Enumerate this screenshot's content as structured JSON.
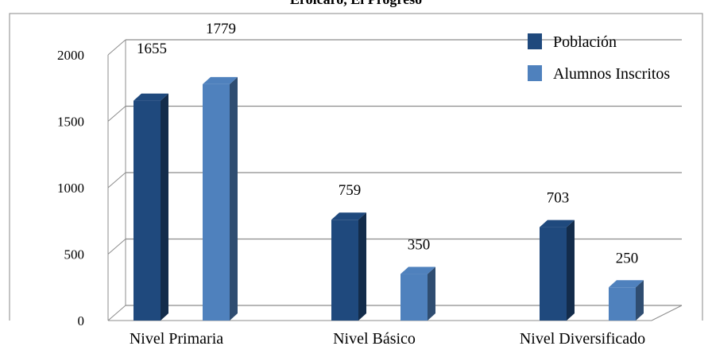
{
  "chart_data": {
    "type": "bar",
    "title": "Eroicaro, El Progreso",
    "categories": [
      "Nivel Primaria",
      "Nivel Básico",
      "Nivel Diversificado"
    ],
    "series": [
      {
        "name": "Población",
        "values": [
          1655,
          759,
          703
        ],
        "color": "#1F497D"
      },
      {
        "name": "Alumnos Inscritos",
        "values": [
          1779,
          350,
          250
        ],
        "color": "#4F81BD"
      }
    ],
    "data_labels": [
      "1655",
      "759",
      "703",
      "1779",
      "350",
      "250"
    ],
    "ylim": [
      0,
      2000
    ],
    "yticks": [
      0,
      500,
      1000,
      1500,
      2000
    ],
    "ytick_labels": [
      "0",
      "500",
      "1000",
      "1500",
      "2000"
    ],
    "xlabel": "",
    "ylabel": "",
    "grid": true,
    "legend_position": "top-right"
  }
}
